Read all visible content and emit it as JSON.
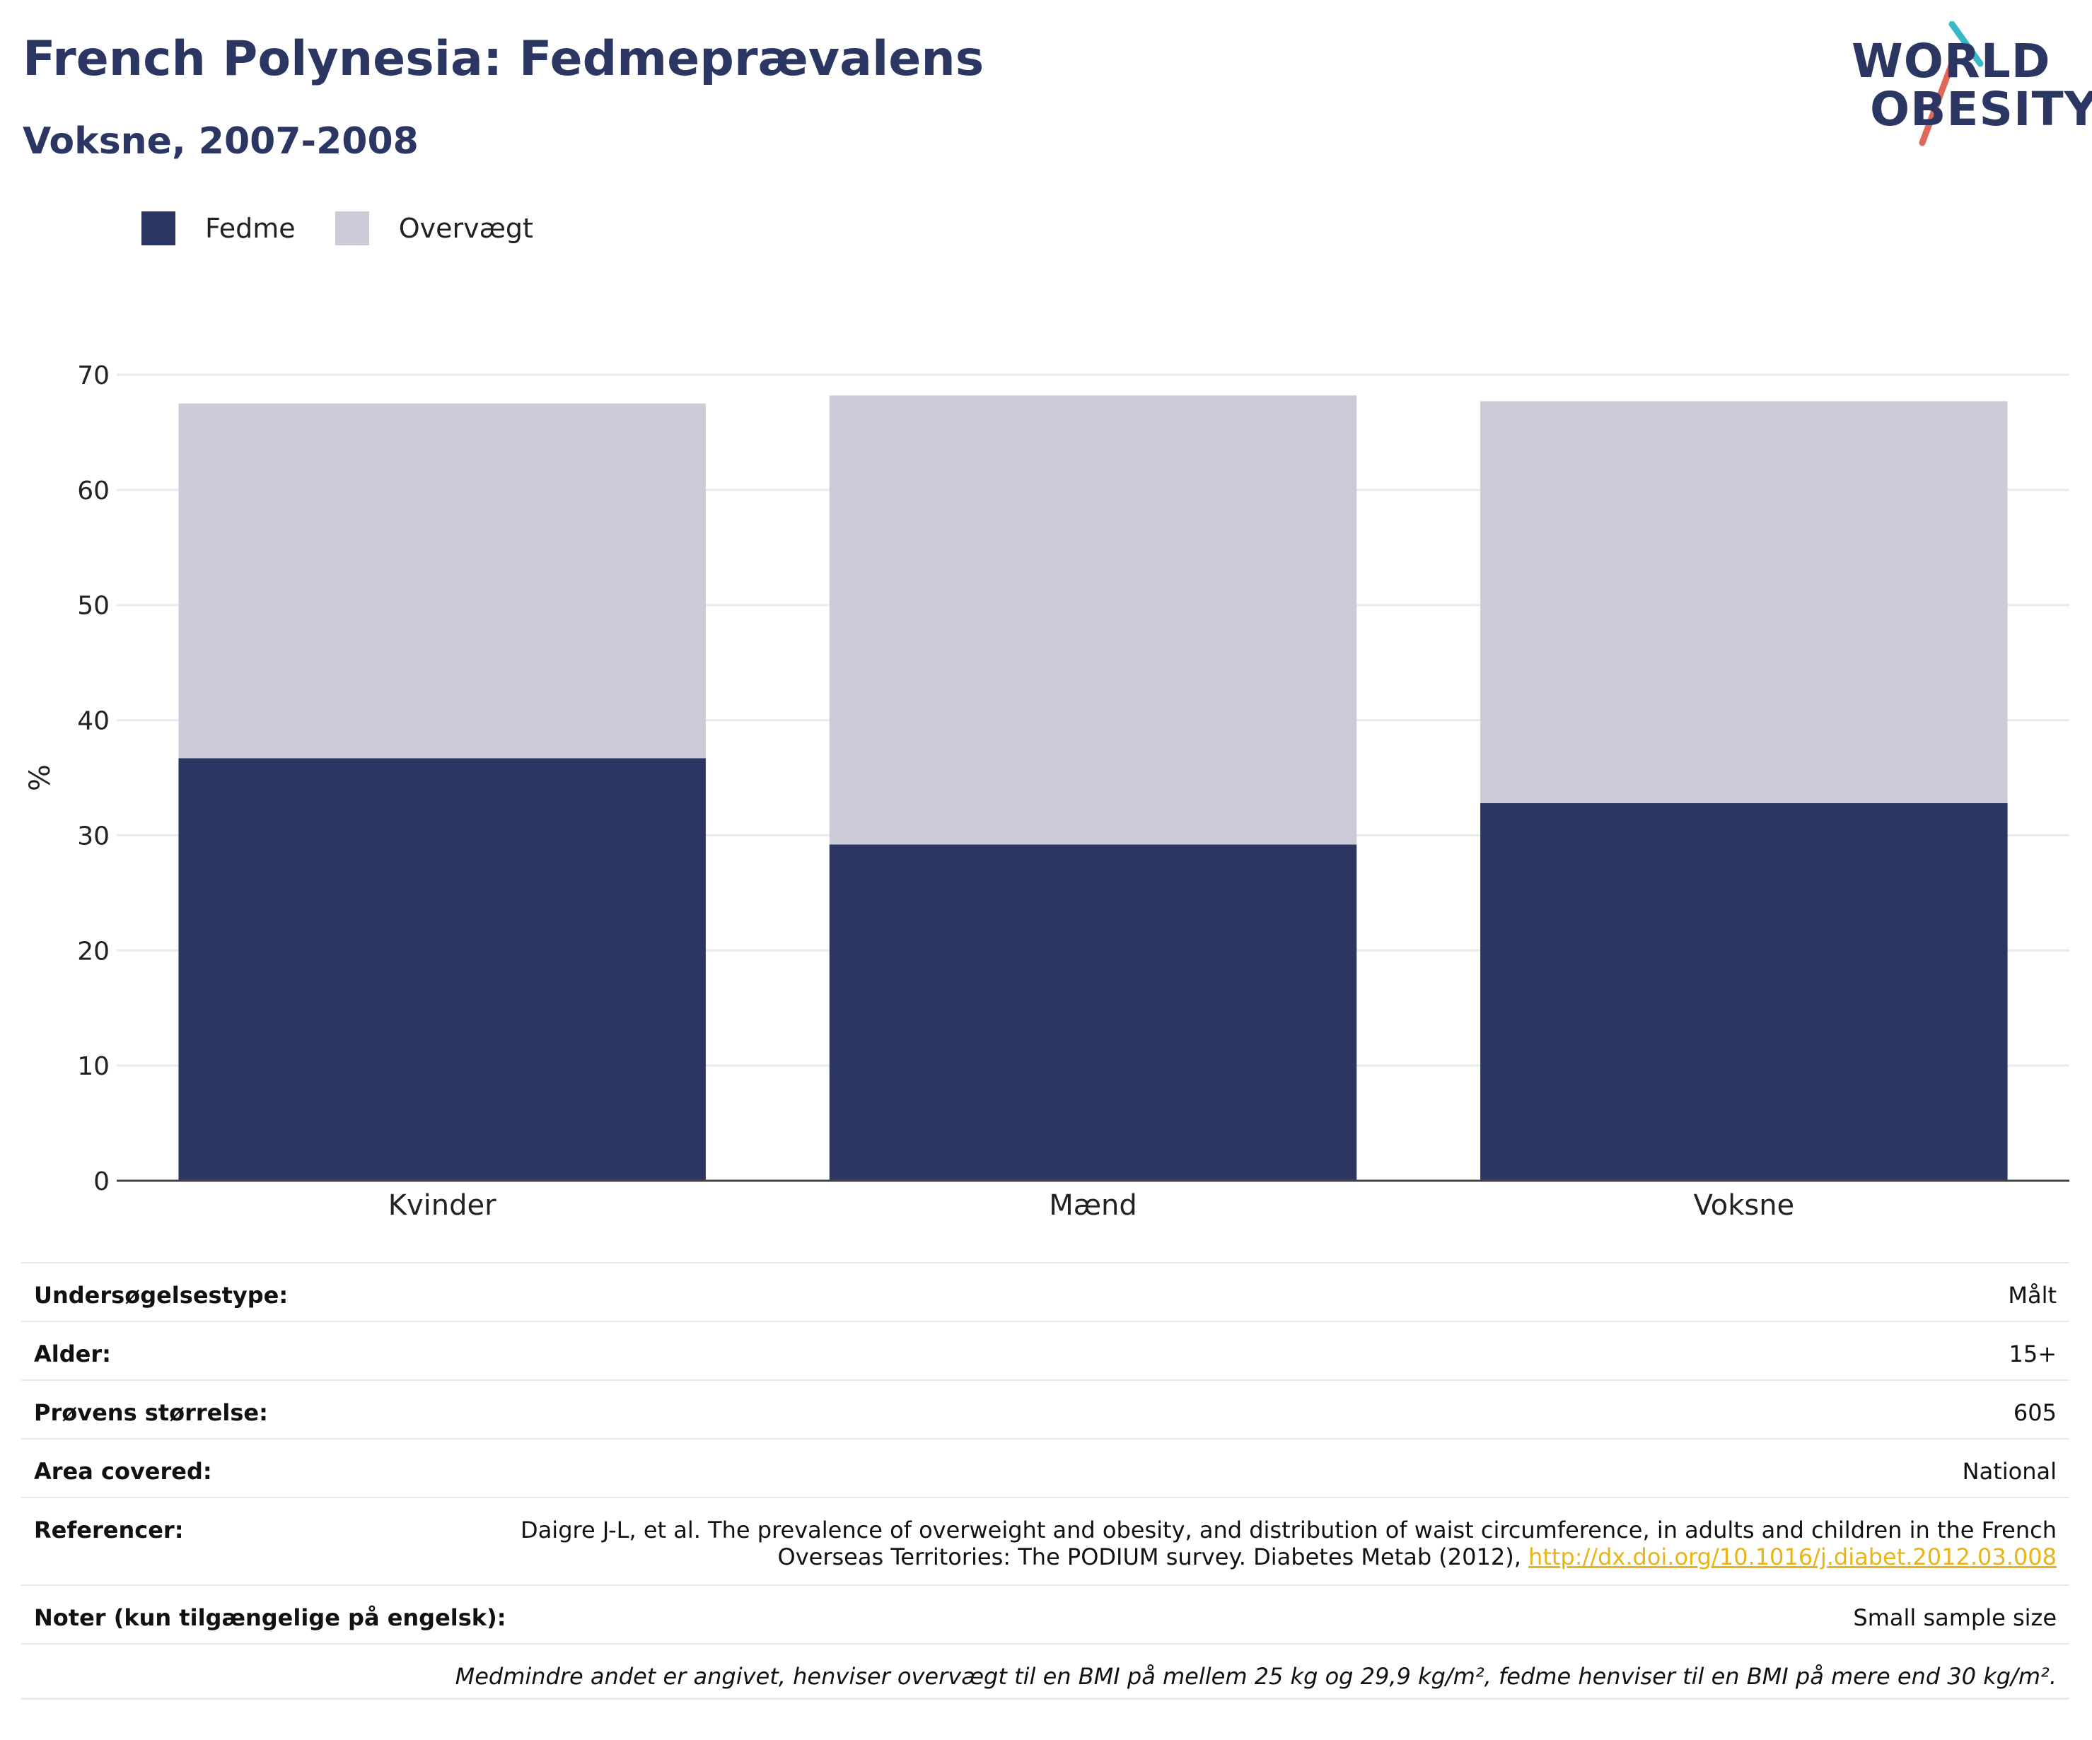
{
  "header": {
    "title": "French Polynesia: Fedmeprævalens",
    "subtitle": "Voksne, 2007-2008"
  },
  "logo": {
    "line1": "WORLD",
    "line2": "OBESITY",
    "colors": {
      "text": "#2b3663",
      "slash_top": "#3ab8c4",
      "slash_bottom": "#e0685a"
    }
  },
  "legend": {
    "items": [
      {
        "label": "Fedme",
        "color": "#2b3663"
      },
      {
        "label": "Overvægt",
        "color": "#cbccd7"
      }
    ]
  },
  "chart_data": {
    "type": "bar",
    "stacked": true,
    "categories": [
      "Kvinder",
      "Mænd",
      "Voksne"
    ],
    "series": [
      {
        "name": "Fedme",
        "color": "#2b3663",
        "values": [
          36.7,
          29.2,
          32.8
        ]
      },
      {
        "name": "Overvægt",
        "color": "#cbccd7",
        "values": [
          30.8,
          39.0,
          34.9
        ]
      }
    ],
    "ylabel": "%",
    "ylim": [
      0,
      70
    ],
    "yticks": [
      0,
      10,
      20,
      30,
      40,
      50,
      60,
      70
    ],
    "grid": true,
    "legend_position": "top-left"
  },
  "meta": {
    "rows": [
      {
        "label": "Undersøgelsestype:",
        "value": "Målt"
      },
      {
        "label": "Alder:",
        "value": "15+"
      },
      {
        "label": "Prøvens størrelse:",
        "value": "605"
      },
      {
        "label": "Area covered:",
        "value": "National"
      }
    ],
    "reference": {
      "label": "Referencer:",
      "text_line1": "Daigre J-L, et al. The prevalence of overweight and obesity, and distribution of waist circumference, in adults and children in the French",
      "text_line2": "Overseas Territories: The PODIUM survey. Diabetes Metab (2012), ",
      "link": "http://dx.doi.org/10.1016/j.diabet.2012.03.008"
    },
    "notes": {
      "label": "Noter (kun tilgængelige på engelsk):",
      "value": "Small sample size"
    },
    "footnote": "Medmindre andet er angivet, henviser overvægt til en BMI på mellem 25 kg og 29,9 kg/m², fedme henviser til en BMI på mere end 30 kg/m²."
  }
}
